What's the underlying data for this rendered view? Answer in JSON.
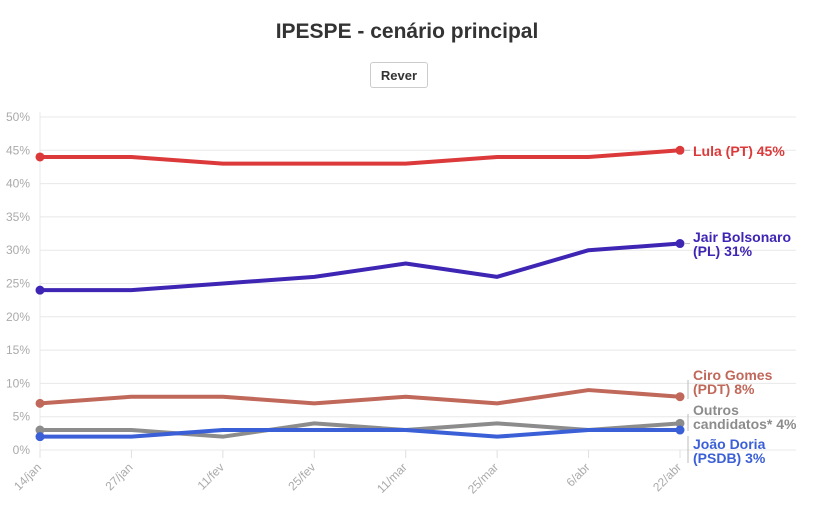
{
  "title": "IPESPE - cenário principal",
  "button_label": "Rever",
  "chart_data": {
    "type": "line",
    "title": "IPESPE - cenário principal",
    "xlabel": "",
    "ylabel": "",
    "categories": [
      "14/jan",
      "27/jan",
      "11/fev",
      "25/fev",
      "11/mar",
      "25/mar",
      "6/abr",
      "22/abr"
    ],
    "y_ticks": [
      "0%",
      "5%",
      "10%",
      "15%",
      "20%",
      "25%",
      "30%",
      "35%",
      "40%",
      "45%",
      "50%"
    ],
    "ylim": [
      0,
      50
    ],
    "grid": true,
    "legend": "direct labels at right end of lines",
    "series": [
      {
        "name": "Lula (PT)",
        "label_lines": [
          "Lula (PT) 45%"
        ],
        "color": "#dc3a3a",
        "values": [
          44,
          44,
          43,
          43,
          43,
          44,
          44,
          45
        ]
      },
      {
        "name": "Jair Bolsonaro (PL)",
        "label_lines": [
          "Jair Bolsonaro",
          "(PL) 31%"
        ],
        "color": "#3f25b4",
        "values": [
          24,
          24,
          25,
          26,
          28,
          26,
          30,
          31
        ]
      },
      {
        "name": "Ciro Gomes (PDT)",
        "label_lines": [
          "Ciro Gomes",
          "(PDT) 8%"
        ],
        "color": "#c0685a",
        "values": [
          7,
          8,
          8,
          7,
          8,
          7,
          9,
          8
        ]
      },
      {
        "name": "Outros candidatos*",
        "label_lines": [
          "Outros",
          "candidatos* 4%"
        ],
        "color": "#8c8c8c",
        "values": [
          3,
          3,
          2,
          4,
          3,
          4,
          3,
          4
        ]
      },
      {
        "name": "João Doria (PSDB)",
        "label_lines": [
          "João Doria",
          "(PSDB) 3%"
        ],
        "color": "#3b5fd6",
        "values": [
          2,
          2,
          3,
          3,
          3,
          2,
          3,
          3
        ]
      }
    ]
  }
}
